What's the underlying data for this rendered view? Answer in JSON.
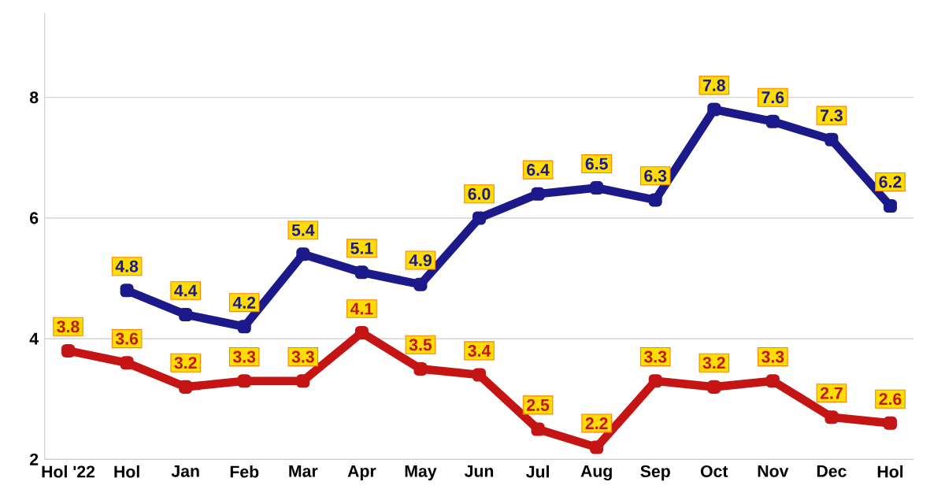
{
  "chart_data": {
    "type": "line",
    "categories": [
      "Hol '22",
      "Hol",
      "Jan",
      "Feb",
      "Mar",
      "Apr",
      "May",
      "Jun",
      "Jul",
      "Aug",
      "Sep",
      "Oct",
      "Nov",
      "Dec",
      "Hol"
    ],
    "series": [
      {
        "color": "#1c1a8a",
        "values": [
          null,
          4.8,
          4.4,
          4.2,
          5.4,
          5.1,
          4.9,
          6.0,
          6.4,
          6.5,
          6.3,
          7.8,
          7.6,
          7.3,
          6.2
        ],
        "value_labels": [
          null,
          "4.8",
          "4.4",
          "4.2",
          "5.4",
          "5.1",
          "4.9",
          "6.0",
          "6.4",
          "6.5",
          "6.3",
          "7.8",
          "7.6",
          "7.3",
          "6.2"
        ]
      },
      {
        "color": "#c41414",
        "values": [
          3.8,
          3.6,
          3.2,
          3.3,
          3.3,
          4.1,
          3.5,
          3.4,
          2.5,
          2.2,
          3.3,
          3.2,
          3.3,
          2.7,
          2.6
        ],
        "value_labels": [
          "3.8",
          "3.6",
          "3.2",
          "3.3",
          "3.3",
          "4.1",
          "3.5",
          "3.4",
          "2.5",
          "2.2",
          "3.3",
          "3.2",
          "3.3",
          "2.7",
          "2.6"
        ]
      }
    ],
    "ylim": [
      2,
      9.4
    ],
    "yticks": [
      2,
      4,
      6,
      8
    ],
    "grid": "y",
    "marker": "square",
    "line_style": "solid"
  }
}
